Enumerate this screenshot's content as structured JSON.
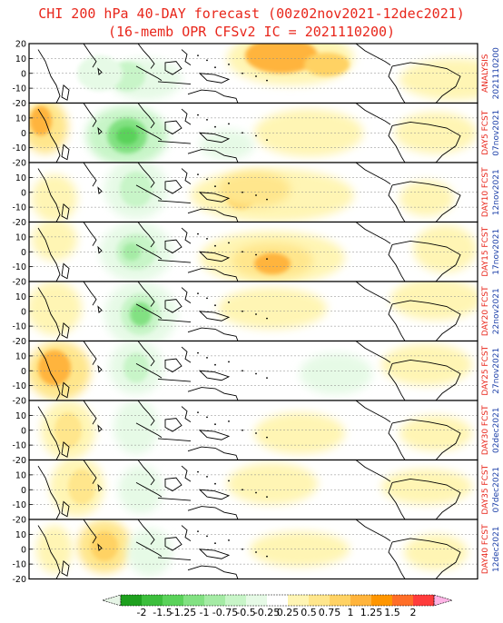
{
  "title": {
    "line1": "CHI 200 hPa 40-DAY forecast (00z02nov2021-12dec2021)",
    "line2": "(16-memb OPR CFSv2 IC = 2021110200)"
  },
  "y_ticks": [
    "20",
    "10",
    "0",
    "-10",
    "-20"
  ],
  "panels": [
    {
      "label": "ANALYSIS",
      "date": "2021110200"
    },
    {
      "label": "DAY5 FCST",
      "date": "07nov2021"
    },
    {
      "label": "DAY10 FCST",
      "date": "12nov2021"
    },
    {
      "label": "DAY15 FCST",
      "date": "17nov2021"
    },
    {
      "label": "DAY20 FCST",
      "date": "22nov2021"
    },
    {
      "label": "DAY25 FCST",
      "date": "27nov2021"
    },
    {
      "label": "DAY30 FCST",
      "date": "02dec2021"
    },
    {
      "label": "DAY35 FCST",
      "date": "07dec2021"
    },
    {
      "label": "DAY40 FCST",
      "date": "12dec2021"
    }
  ],
  "colorbar": {
    "labels": [
      "-2",
      "-1.5",
      "-1.25",
      "-1",
      "-0.75",
      "-0.5",
      "-0.25",
      "0.25",
      "0.5",
      "0.75",
      "1",
      "1.25",
      "1.5",
      "2"
    ],
    "colors": [
      "#1ea01e",
      "#3cbe3c",
      "#5ad25a",
      "#82e182",
      "#a5eba5",
      "#c8f5c8",
      "#e6fae6",
      "#ffffff",
      "#fff5b4",
      "#ffe68c",
      "#ffd264",
      "#ffb43c",
      "#ff9600",
      "#ff6e28",
      "#ff3c3c"
    ],
    "low_color": "#e6f5e6",
    "high_color": "#ffb4e6"
  },
  "colors": {
    "title": "#e8261b",
    "panel_label": "#e8261b",
    "panel_date": "#1c3fa8"
  }
}
